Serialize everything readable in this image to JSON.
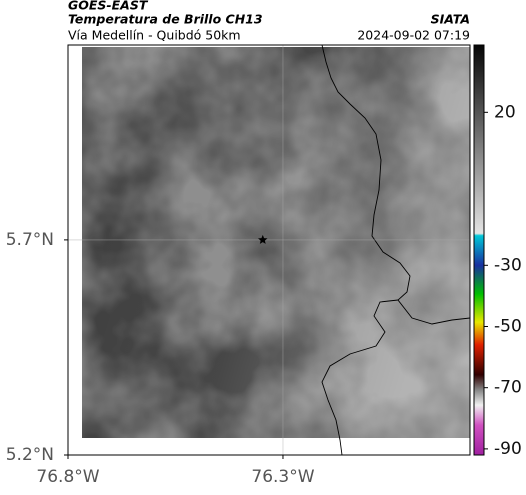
{
  "chart_data": {
    "type": "map",
    "title": "GOES-EAST",
    "subtitle": "Temperatura de Brillo CH13",
    "source": "SIATA",
    "region": "Vía Medellín - Quibdó 50km",
    "timestamp": "2024-09-02 07:19",
    "xlim": [
      -76.8,
      -75.865
    ],
    "ylim": [
      5.2,
      6.153
    ],
    "xticks": [
      {
        "value": -76.8,
        "label": "76.8°W"
      },
      {
        "value": -76.3,
        "label": "76.3°W"
      }
    ],
    "yticks": [
      {
        "value": 5.2,
        "label": "5.2°N"
      },
      {
        "value": 5.7,
        "label": "5.7°N"
      }
    ],
    "grid": true,
    "marker": {
      "x": -76.347,
      "y": 5.7,
      "color": "#000000"
    },
    "colorbar": {
      "lim": [
        -92,
        42
      ],
      "ticks": [
        20,
        -30,
        -50,
        -70,
        -90
      ],
      "stops": [
        {
          "value": 42,
          "color": "#050505"
        },
        {
          "value": -19.6,
          "color": "#e4e4e4"
        },
        {
          "value": -20.3,
          "color": "#00c8d8"
        },
        {
          "value": -30,
          "color": "#1830a0"
        },
        {
          "value": -39.4,
          "color": "#00c000"
        },
        {
          "value": -48.6,
          "color": "#e8e800"
        },
        {
          "value": -56,
          "color": "#e02000"
        },
        {
          "value": -65.8,
          "color": "#300000"
        },
        {
          "value": -70.8,
          "color": "#888888"
        },
        {
          "value": -75.7,
          "color": "#f0f0f0"
        },
        {
          "value": -82.3,
          "color": "#d050c0"
        },
        {
          "value": -92,
          "color": "#a020a0"
        }
      ]
    }
  }
}
